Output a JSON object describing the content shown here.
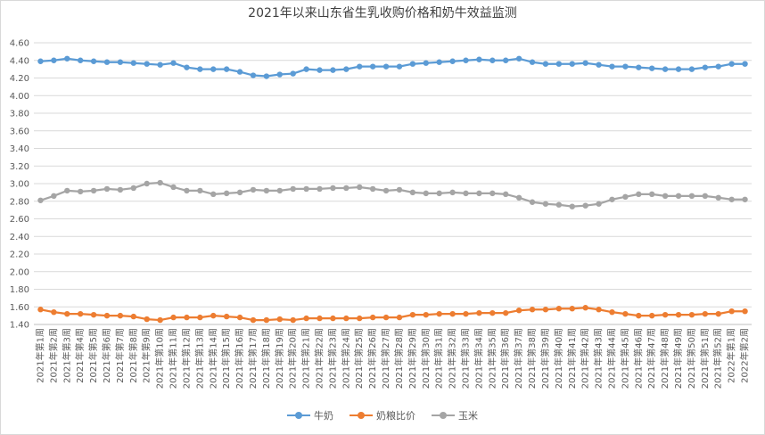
{
  "chart_data": {
    "type": "line",
    "title": "2021年以来山东省生乳收购价格和奶牛效益监测",
    "xlabel": "",
    "ylabel": "",
    "ylim": [
      1.4,
      4.6
    ],
    "yticks": [
      "1.40",
      "1.60",
      "1.80",
      "2.00",
      "2.20",
      "2.40",
      "2.60",
      "2.80",
      "3.00",
      "3.20",
      "3.40",
      "3.60",
      "3.80",
      "4.00",
      "4.20",
      "4.40",
      "4.60"
    ],
    "grid": true,
    "legend_position": "bottom",
    "categories": [
      "2021年第1周",
      "2021年第2周",
      "2021年第3周",
      "2021年第4周",
      "2021年第5周",
      "2021年第6周",
      "2021年第7周",
      "2021年第8周",
      "2021年第9周",
      "2021年第10周",
      "2021年第11周",
      "2021年第12周",
      "2021年第13周",
      "2021年第14周",
      "2021年第15周",
      "2021年第16周",
      "2021年第17周",
      "2021年第18周",
      "2021年第19周",
      "2021年第20周",
      "2021年第21周",
      "2021年第22周",
      "2021年第23周",
      "2021年第24周",
      "2021年第25周",
      "2021年第26周",
      "2021年第27周",
      "2021年第28周",
      "2021年第29周",
      "2021年第30周",
      "2021年第31周",
      "2021年第32周",
      "2021年第33周",
      "2021年第34周",
      "2021年第35周",
      "2021年第36周",
      "2021年第37周",
      "2021年第38周",
      "2021年第39周",
      "2021年第40周",
      "2021年第41周",
      "2021年第42周",
      "2021年第43周",
      "2021年第44周",
      "2021年第45周",
      "2021年第46周",
      "2021年第47周",
      "2021年第48周",
      "2021年第49周",
      "2021年第50周",
      "2021年第51周",
      "2021年第52周",
      "2022年第1周",
      "2022年第2周"
    ],
    "series": [
      {
        "name": "牛奶",
        "color": "#5b9bd5",
        "values": [
          4.39,
          4.4,
          4.42,
          4.4,
          4.39,
          4.38,
          4.38,
          4.37,
          4.36,
          4.35,
          4.37,
          4.32,
          4.3,
          4.3,
          4.3,
          4.27,
          4.23,
          4.22,
          4.24,
          4.25,
          4.3,
          4.29,
          4.29,
          4.3,
          4.33,
          4.33,
          4.33,
          4.33,
          4.36,
          4.37,
          4.38,
          4.39,
          4.4,
          4.41,
          4.4,
          4.4,
          4.42,
          4.38,
          4.36,
          4.36,
          4.36,
          4.37,
          4.35,
          4.33,
          4.33,
          4.32,
          4.31,
          4.3,
          4.3,
          4.3,
          4.32,
          4.33,
          4.36,
          4.36
        ]
      },
      {
        "name": "奶粮比价",
        "color": "#ed7d31",
        "values": [
          1.57,
          1.54,
          1.52,
          1.52,
          1.51,
          1.5,
          1.5,
          1.49,
          1.46,
          1.45,
          1.48,
          1.48,
          1.48,
          1.5,
          1.49,
          1.48,
          1.45,
          1.45,
          1.46,
          1.45,
          1.47,
          1.47,
          1.47,
          1.47,
          1.47,
          1.48,
          1.48,
          1.48,
          1.51,
          1.51,
          1.52,
          1.52,
          1.52,
          1.53,
          1.53,
          1.53,
          1.56,
          1.57,
          1.57,
          1.58,
          1.58,
          1.59,
          1.57,
          1.54,
          1.52,
          1.5,
          1.5,
          1.51,
          1.51,
          1.51,
          1.52,
          1.52,
          1.55,
          1.55
        ]
      },
      {
        "name": "玉米",
        "color": "#a5a5a5",
        "values": [
          2.81,
          2.86,
          2.92,
          2.91,
          2.92,
          2.94,
          2.93,
          2.95,
          3.0,
          3.01,
          2.96,
          2.92,
          2.92,
          2.88,
          2.89,
          2.9,
          2.93,
          2.92,
          2.92,
          2.94,
          2.94,
          2.94,
          2.95,
          2.95,
          2.96,
          2.94,
          2.92,
          2.93,
          2.9,
          2.89,
          2.89,
          2.9,
          2.89,
          2.89,
          2.89,
          2.88,
          2.84,
          2.79,
          2.77,
          2.76,
          2.74,
          2.75,
          2.77,
          2.82,
          2.85,
          2.88,
          2.88,
          2.86,
          2.86,
          2.86,
          2.86,
          2.84,
          2.82,
          2.82
        ]
      }
    ]
  }
}
